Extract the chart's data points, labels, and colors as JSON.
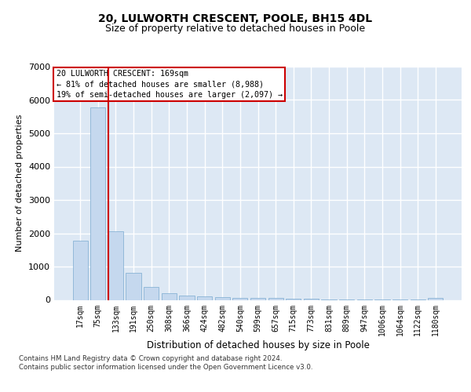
{
  "title": "20, LULWORTH CRESCENT, POOLE, BH15 4DL",
  "subtitle": "Size of property relative to detached houses in Poole",
  "xlabel": "Distribution of detached houses by size in Poole",
  "ylabel": "Number of detached properties",
  "categories": [
    "17sqm",
    "75sqm",
    "133sqm",
    "191sqm",
    "250sqm",
    "308sqm",
    "366sqm",
    "424sqm",
    "482sqm",
    "540sqm",
    "599sqm",
    "657sqm",
    "715sqm",
    "773sqm",
    "831sqm",
    "889sqm",
    "947sqm",
    "1006sqm",
    "1064sqm",
    "1122sqm",
    "1180sqm"
  ],
  "values": [
    1780,
    5780,
    2060,
    820,
    390,
    210,
    120,
    110,
    75,
    55,
    65,
    50,
    45,
    25,
    15,
    12,
    8,
    8,
    6,
    4,
    60
  ],
  "bar_color": "#c5d8ee",
  "bar_edge_color": "#7aaad0",
  "vline_x_index": 2,
  "vline_color": "#cc0000",
  "annotation_text": "20 LULWORTH CRESCENT: 169sqm\n← 81% of detached houses are smaller (8,988)\n19% of semi-detached houses are larger (2,097) →",
  "annotation_box_color": "#ffffff",
  "annotation_box_edge_color": "#cc0000",
  "ylim": [
    0,
    7000
  ],
  "yticks": [
    0,
    1000,
    2000,
    3000,
    4000,
    5000,
    6000,
    7000
  ],
  "background_color": "#dde8f4",
  "grid_color": "#ffffff",
  "footer_line1": "Contains HM Land Registry data © Crown copyright and database right 2024.",
  "footer_line2": "Contains public sector information licensed under the Open Government Licence v3.0.",
  "title_fontsize": 10,
  "subtitle_fontsize": 9,
  "tick_fontsize": 7,
  "ylabel_fontsize": 8,
  "xlabel_fontsize": 8.5
}
